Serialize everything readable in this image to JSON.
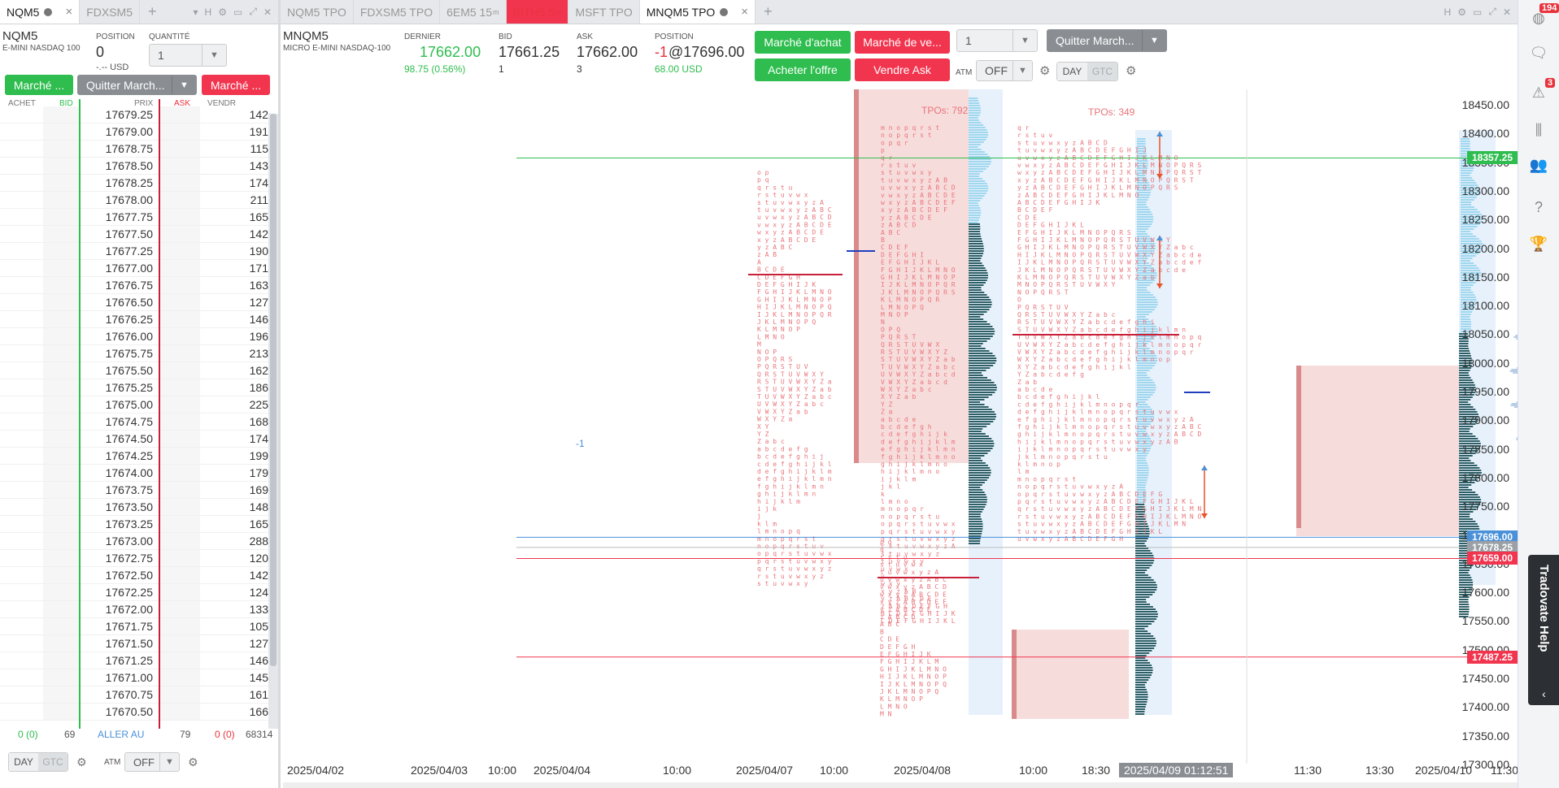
{
  "left_tabs": [
    {
      "label": "NQM5",
      "active": true,
      "dot": true,
      "close": true
    },
    {
      "label": "FDXSM5",
      "active": false
    }
  ],
  "right_tabs": [
    {
      "label": "NQM5 TPO"
    },
    {
      "label": "FDXSM5 TPO"
    },
    {
      "label": "6EM5 15",
      "sup": "m"
    },
    {
      "label": "BITH5 5",
      "sup": "m",
      "red": true
    },
    {
      "label": "MSFT TPO"
    },
    {
      "label": "MNQM5 TPO",
      "active": true
    }
  ],
  "left_panel": {
    "symbol": "NQM5",
    "desc": "E-MINI NASDAQ 100",
    "position_label": "POSITION",
    "position": "0",
    "position_usd": "-.-- USD",
    "qty_label": "QUANTITÉ",
    "qty": "1",
    "buy_market": "Marché ...",
    "quit_market": "Quitter March...",
    "sell_market": "Marché ...",
    "headers": {
      "buy": "ACHET",
      "bid": "BID",
      "price": "PRIX",
      "ask": "ASK",
      "sell": "VENDR"
    },
    "footer": {
      "bid_pos": "0 (0)",
      "bid_total": "69",
      "goto": "ALLER AU",
      "ask_total": "79",
      "ask_pos": "0 (0)",
      "vol_total": "68314"
    },
    "day": "DAY",
    "gtc": "GTC",
    "atm": "ATM",
    "off": "OFF"
  },
  "ladder": [
    [
      "17679.25",
      "142"
    ],
    [
      "17679.00",
      "191"
    ],
    [
      "17678.75",
      "115"
    ],
    [
      "17678.50",
      "143"
    ],
    [
      "17678.25",
      "174"
    ],
    [
      "17678.00",
      "211"
    ],
    [
      "17677.75",
      "165"
    ],
    [
      "17677.50",
      "142"
    ],
    [
      "17677.25",
      "190"
    ],
    [
      "17677.00",
      "171"
    ],
    [
      "17676.75",
      "163"
    ],
    [
      "17676.50",
      "127"
    ],
    [
      "17676.25",
      "146"
    ],
    [
      "17676.00",
      "196"
    ],
    [
      "17675.75",
      "213"
    ],
    [
      "17675.50",
      "162"
    ],
    [
      "17675.25",
      "186"
    ],
    [
      "17675.00",
      "225"
    ],
    [
      "17674.75",
      "168"
    ],
    [
      "17674.50",
      "174"
    ],
    [
      "17674.25",
      "199"
    ],
    [
      "17674.00",
      "179"
    ],
    [
      "17673.75",
      "169"
    ],
    [
      "17673.50",
      "148"
    ],
    [
      "17673.25",
      "165"
    ],
    [
      "17673.00",
      "288"
    ],
    [
      "17672.75",
      "120"
    ],
    [
      "17672.50",
      "142"
    ],
    [
      "17672.25",
      "124"
    ],
    [
      "17672.00",
      "133"
    ],
    [
      "17671.75",
      "105"
    ],
    [
      "17671.50",
      "127"
    ],
    [
      "17671.25",
      "146"
    ],
    [
      "17671.00",
      "145"
    ],
    [
      "17670.75",
      "161"
    ],
    [
      "17670.50",
      "166"
    ]
  ],
  "right_panel": {
    "symbol": "MNQM5",
    "desc": "MICRO E-MINI NASDAQ-100",
    "last_label": "DERNIER",
    "last": "17662.00",
    "change": "98.75 (0.56%)",
    "bid_label": "BID",
    "bid": "17661.25",
    "bid_size": "1",
    "ask_label": "ASK",
    "ask": "17662.00",
    "ask_size": "3",
    "pos_label": "POSITION",
    "pos_qty": "-1",
    "pos_price": "@17696.00",
    "pos_pnl": "68.00 USD",
    "buy_market": "Marché d'achat",
    "sell_market": "Marché de ve...",
    "qty": "1",
    "quit_market": "Quitter March...",
    "buy_bid": "Acheter l'offre",
    "sell_ask": "Vendre Ask",
    "atm": "ATM",
    "off": "OFF",
    "day": "DAY",
    "gtc": "GTC"
  },
  "chart": {
    "tpo1": "TPOs: 792",
    "tpo2": "TPOs: 349",
    "pos_marker": "-1",
    "y_ticks": [
      "18450.00",
      "18400.00",
      "18350.00",
      "18300.00",
      "18250.00",
      "18200.00",
      "18150.00",
      "18100.00",
      "18050.00",
      "18000.00",
      "17950.00",
      "17900.00",
      "17850.00",
      "17800.00",
      "17750.00",
      "17700.00",
      "17650.00",
      "17600.00",
      "17550.00",
      "17500.00",
      "17450.00",
      "17400.00",
      "17350.00",
      "17300.00"
    ],
    "badges": [
      {
        "text": "18357.25",
        "color": "#2ebd4e"
      },
      {
        "text": "17696.00",
        "color": "#4a90d9"
      },
      {
        "text": "17678.25",
        "color": "#9aa0a6"
      },
      {
        "text": "17659.00",
        "color": "#f2354f"
      },
      {
        "text": "17487.25",
        "color": "#f2354f"
      }
    ],
    "x_ticks": [
      "2025/04/02",
      "2025/04/03",
      "10:00",
      "2025/04/04",
      "10:00",
      "2025/04/07",
      "10:00",
      "2025/04/08",
      "10:00",
      "18:30",
      "11:30",
      "13:30",
      "2025/04/10",
      "11:30"
    ],
    "cursor_time": "2025/04/09 01:12:51"
  },
  "help": "Tradovate Help",
  "sidebar": {
    "badge1": "194",
    "badge2": "3"
  }
}
